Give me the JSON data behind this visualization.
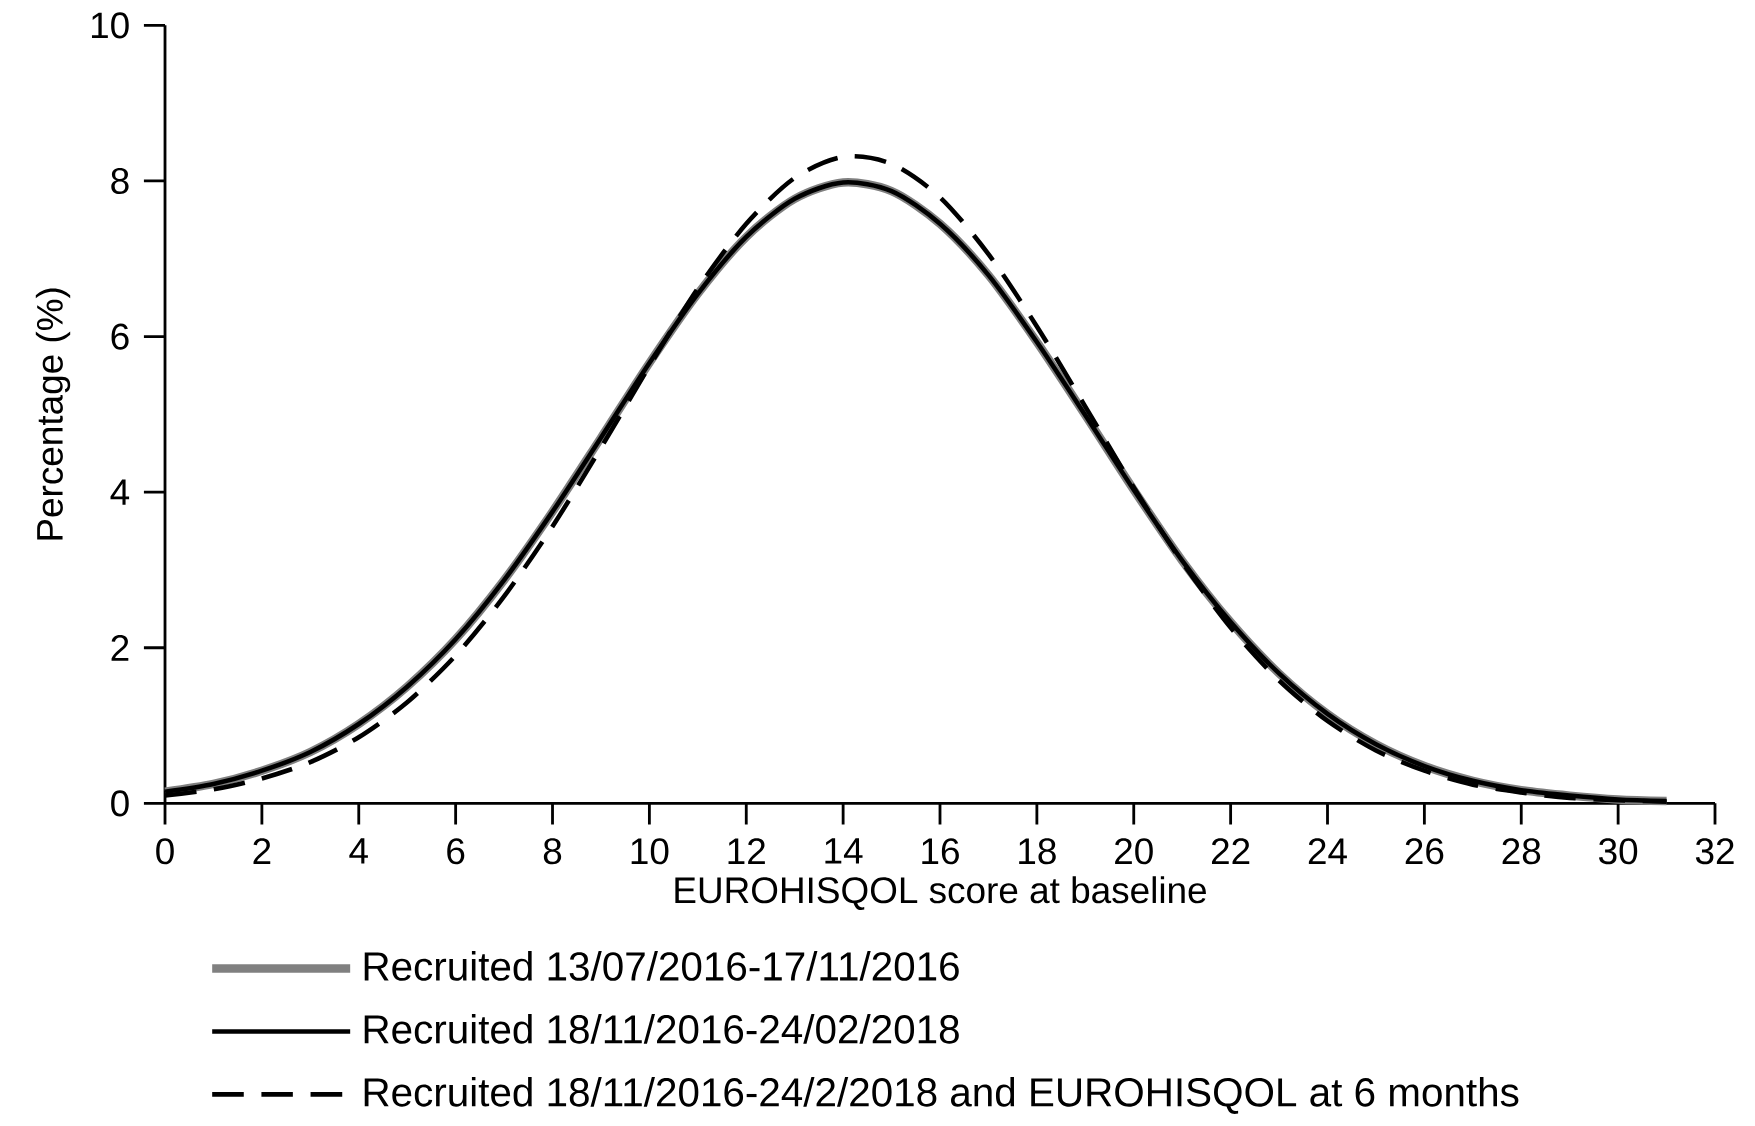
{
  "chart_data": {
    "type": "line",
    "xlabel": "EUROHISQOL score at baseline",
    "ylabel": "Percentage (%)",
    "x": [
      0,
      1,
      2,
      3,
      4,
      5,
      6,
      7,
      8,
      9,
      10,
      11,
      12,
      13,
      14,
      15,
      16,
      17,
      18,
      19,
      20,
      21,
      22,
      23,
      24,
      25,
      26,
      27,
      28,
      29,
      30,
      31
    ],
    "xlim": [
      0,
      32
    ],
    "ylim": [
      0,
      10
    ],
    "xticks": [
      0,
      2,
      4,
      6,
      8,
      10,
      12,
      14,
      16,
      18,
      20,
      22,
      24,
      26,
      28,
      30,
      32
    ],
    "yticks": [
      0,
      2,
      4,
      6,
      8,
      10
    ],
    "legend": "bottom",
    "series": [
      {
        "name": "Recruited 13/07/2016-17/11/2016",
        "color": "#808080",
        "line_style": "solid",
        "values": [
          0.15,
          0.25,
          0.42,
          0.66,
          1.02,
          1.5,
          2.11,
          2.87,
          3.75,
          4.7,
          5.66,
          6.55,
          7.28,
          7.77,
          7.98,
          7.87,
          7.45,
          6.79,
          5.93,
          4.99,
          4.03,
          3.12,
          2.33,
          1.67,
          1.15,
          0.76,
          0.48,
          0.29,
          0.17,
          0.1,
          0.05,
          0.03
        ]
      },
      {
        "name": "Recruited 18/11/2016-24/02/2018",
        "color": "#000000",
        "line_style": "solid",
        "values": [
          0.15,
          0.25,
          0.42,
          0.66,
          1.02,
          1.5,
          2.11,
          2.87,
          3.75,
          4.7,
          5.66,
          6.55,
          7.28,
          7.77,
          7.98,
          7.87,
          7.45,
          6.79,
          5.93,
          4.99,
          4.03,
          3.12,
          2.33,
          1.67,
          1.15,
          0.76,
          0.48,
          0.29,
          0.17,
          0.1,
          0.05,
          0.03
        ]
      },
      {
        "name": "Recruited 18/11/2016-24/2/2018  and EUROHISQOL at 6 months",
        "color": "#000000",
        "line_style": "dashed",
        "values": [
          0.1,
          0.18,
          0.32,
          0.53,
          0.85,
          1.3,
          1.9,
          2.66,
          3.56,
          4.57,
          5.62,
          6.62,
          7.45,
          8.04,
          8.31,
          8.22,
          7.79,
          7.06,
          6.13,
          5.1,
          4.06,
          3.1,
          2.26,
          1.58,
          1.06,
          0.68,
          0.42,
          0.24,
          0.14,
          0.07,
          0.04,
          0.02
        ]
      }
    ]
  }
}
